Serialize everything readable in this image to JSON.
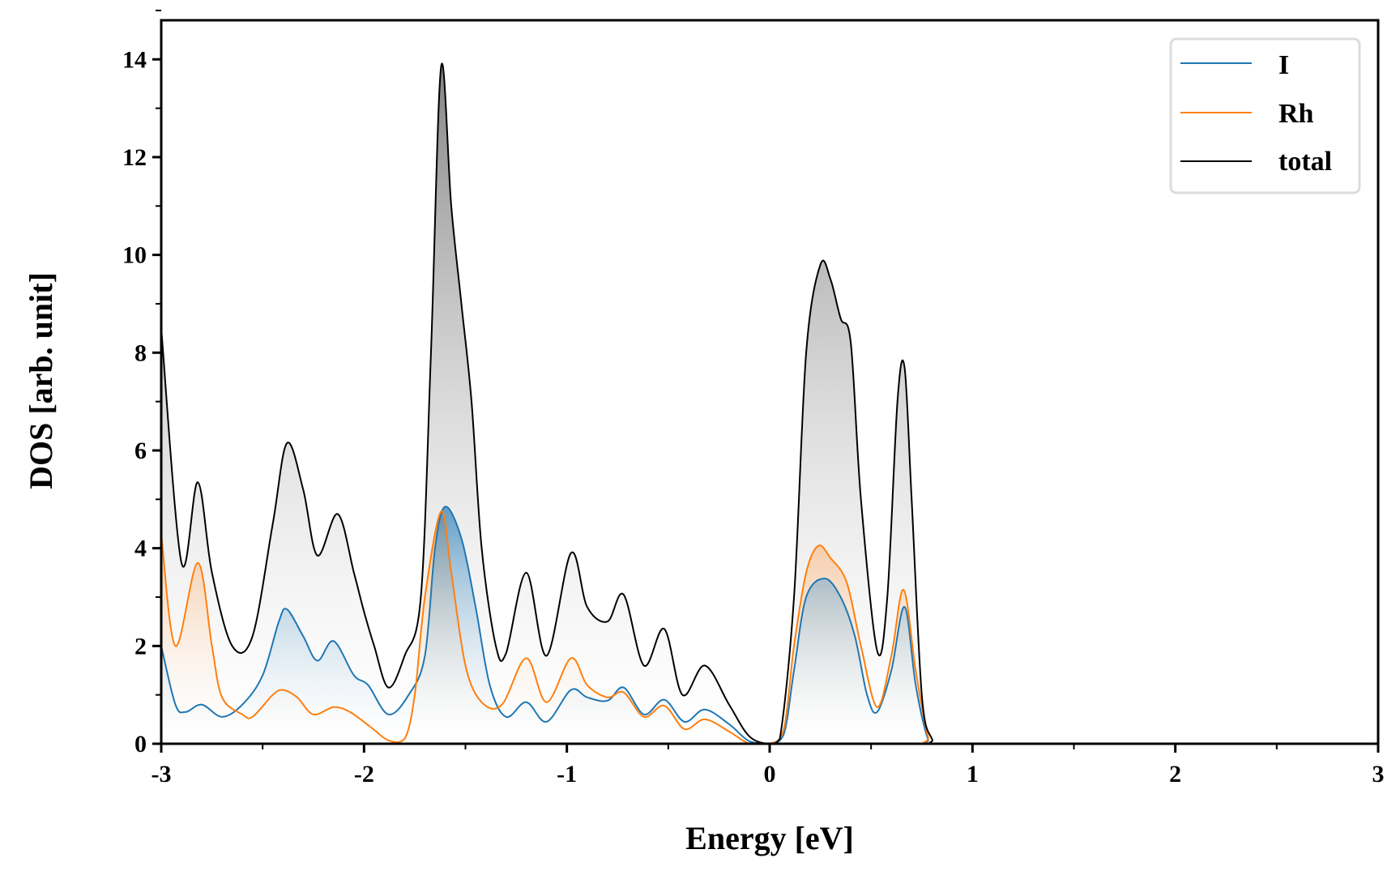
{
  "chart_data": {
    "type": "area",
    "title": "",
    "xlabel": "Energy [eV]",
    "ylabel": "DOS [arb. unit]",
    "xlim": [
      -3,
      3
    ],
    "ylim": [
      0,
      14.8
    ],
    "xticks": [
      -3,
      -2,
      -1,
      0,
      1,
      2,
      3
    ],
    "xtick_labels": [
      "-3",
      "-2",
      "-1",
      "0",
      "1",
      "2",
      "3"
    ],
    "yticks": [
      0,
      2,
      4,
      6,
      8,
      10,
      12,
      14
    ],
    "ytick_labels": [
      "0",
      "2",
      "4",
      "6",
      "8",
      "10",
      "12",
      "14"
    ],
    "grid": false,
    "legend_position": "top-right",
    "series": [
      {
        "name": "I",
        "color": "#1f77b4",
        "points": [
          [
            -3,
            2.0
          ],
          [
            -2.93,
            0.8
          ],
          [
            -2.88,
            0.65
          ],
          [
            -2.8,
            0.8
          ],
          [
            -2.7,
            0.55
          ],
          [
            -2.6,
            0.8
          ],
          [
            -2.5,
            1.4
          ],
          [
            -2.42,
            2.5
          ],
          [
            -2.38,
            2.75
          ],
          [
            -2.3,
            2.2
          ],
          [
            -2.23,
            1.7
          ],
          [
            -2.15,
            2.1
          ],
          [
            -2.05,
            1.4
          ],
          [
            -1.98,
            1.2
          ],
          [
            -1.88,
            0.6
          ],
          [
            -1.78,
            1.0
          ],
          [
            -1.7,
            1.8
          ],
          [
            -1.65,
            4.0
          ],
          [
            -1.6,
            4.85
          ],
          [
            -1.52,
            4.2
          ],
          [
            -1.45,
            2.8
          ],
          [
            -1.38,
            1.2
          ],
          [
            -1.3,
            0.55
          ],
          [
            -1.2,
            0.85
          ],
          [
            -1.1,
            0.45
          ],
          [
            -0.98,
            1.1
          ],
          [
            -0.9,
            0.95
          ],
          [
            -0.8,
            0.88
          ],
          [
            -0.72,
            1.15
          ],
          [
            -0.62,
            0.6
          ],
          [
            -0.52,
            0.9
          ],
          [
            -0.42,
            0.45
          ],
          [
            -0.32,
            0.7
          ],
          [
            -0.2,
            0.4
          ],
          [
            -0.1,
            0.05
          ],
          [
            0,
            0
          ],
          [
            0.07,
            0.2
          ],
          [
            0.12,
            1.5
          ],
          [
            0.18,
            3.0
          ],
          [
            0.27,
            3.38
          ],
          [
            0.35,
            3.0
          ],
          [
            0.42,
            2.2
          ],
          [
            0.48,
            1.0
          ],
          [
            0.53,
            0.65
          ],
          [
            0.6,
            1.5
          ],
          [
            0.665,
            2.8
          ],
          [
            0.72,
            1.2
          ],
          [
            0.78,
            0.1
          ],
          [
            0.82,
            0
          ],
          [
            1.5,
            0
          ],
          [
            3,
            0
          ]
        ]
      },
      {
        "name": "Rh",
        "color": "#ff7f0e",
        "points": [
          [
            -3,
            4.3
          ],
          [
            -2.93,
            2.0
          ],
          [
            -2.82,
            3.7
          ],
          [
            -2.75,
            2.0
          ],
          [
            -2.7,
            0.95
          ],
          [
            -2.6,
            0.6
          ],
          [
            -2.55,
            0.55
          ],
          [
            -2.45,
            1.0
          ],
          [
            -2.4,
            1.1
          ],
          [
            -2.33,
            0.95
          ],
          [
            -2.25,
            0.6
          ],
          [
            -2.15,
            0.75
          ],
          [
            -2.07,
            0.65
          ],
          [
            -1.97,
            0.35
          ],
          [
            -1.88,
            0.07
          ],
          [
            -1.8,
            0.1
          ],
          [
            -1.75,
            1.0
          ],
          [
            -1.7,
            3.0
          ],
          [
            -1.62,
            4.75
          ],
          [
            -1.57,
            3.5
          ],
          [
            -1.5,
            1.6
          ],
          [
            -1.42,
            0.85
          ],
          [
            -1.32,
            0.8
          ],
          [
            -1.2,
            1.75
          ],
          [
            -1.1,
            0.85
          ],
          [
            -0.98,
            1.75
          ],
          [
            -0.9,
            1.2
          ],
          [
            -0.8,
            0.95
          ],
          [
            -0.72,
            1.05
          ],
          [
            -0.62,
            0.55
          ],
          [
            -0.52,
            0.78
          ],
          [
            -0.42,
            0.3
          ],
          [
            -0.32,
            0.5
          ],
          [
            -0.2,
            0.25
          ],
          [
            -0.1,
            0
          ],
          [
            0,
            0
          ],
          [
            0.07,
            0.3
          ],
          [
            0.12,
            2.0
          ],
          [
            0.18,
            3.5
          ],
          [
            0.24,
            4.05
          ],
          [
            0.3,
            3.8
          ],
          [
            0.38,
            3.3
          ],
          [
            0.45,
            2.0
          ],
          [
            0.53,
            0.75
          ],
          [
            0.6,
            1.8
          ],
          [
            0.66,
            3.15
          ],
          [
            0.72,
            1.5
          ],
          [
            0.78,
            0.15
          ],
          [
            0.82,
            0
          ],
          [
            1.5,
            0
          ],
          [
            3,
            0
          ]
        ]
      },
      {
        "name": "total",
        "color": "#000000",
        "points": [
          [
            -3,
            8.5
          ],
          [
            -2.9,
            3.7
          ],
          [
            -2.82,
            5.35
          ],
          [
            -2.75,
            3.5
          ],
          [
            -2.65,
            2.0
          ],
          [
            -2.55,
            2.2
          ],
          [
            -2.45,
            4.5
          ],
          [
            -2.38,
            6.15
          ],
          [
            -2.3,
            5.2
          ],
          [
            -2.23,
            3.85
          ],
          [
            -2.13,
            4.7
          ],
          [
            -2.05,
            3.5
          ],
          [
            -2.0,
            2.7
          ],
          [
            -1.95,
            2.0
          ],
          [
            -1.88,
            1.15
          ],
          [
            -1.8,
            1.8
          ],
          [
            -1.72,
            3.0
          ],
          [
            -1.67,
            8.0
          ],
          [
            -1.62,
            13.85
          ],
          [
            -1.57,
            11.0
          ],
          [
            -1.52,
            9.0
          ],
          [
            -1.47,
            7.0
          ],
          [
            -1.42,
            4.0
          ],
          [
            -1.35,
            2.0
          ],
          [
            -1.3,
            1.85
          ],
          [
            -1.2,
            3.5
          ],
          [
            -1.1,
            1.8
          ],
          [
            -0.98,
            3.9
          ],
          [
            -0.9,
            2.8
          ],
          [
            -0.8,
            2.5
          ],
          [
            -0.72,
            3.05
          ],
          [
            -0.62,
            1.6
          ],
          [
            -0.52,
            2.35
          ],
          [
            -0.43,
            1.0
          ],
          [
            -0.32,
            1.6
          ],
          [
            -0.2,
            0.8
          ],
          [
            -0.1,
            0.15
          ],
          [
            0,
            0
          ],
          [
            0.05,
            0.1
          ],
          [
            0.12,
            3.0
          ],
          [
            0.18,
            8.0
          ],
          [
            0.25,
            9.8
          ],
          [
            0.3,
            9.5
          ],
          [
            0.35,
            8.7
          ],
          [
            0.4,
            8.2
          ],
          [
            0.45,
            5.0
          ],
          [
            0.53,
            1.9
          ],
          [
            0.58,
            3.0
          ],
          [
            0.63,
            7.0
          ],
          [
            0.665,
            7.7
          ],
          [
            0.7,
            5.0
          ],
          [
            0.75,
            1.0
          ],
          [
            0.8,
            0.1
          ],
          [
            0.85,
            0
          ],
          [
            1.5,
            0
          ],
          [
            3,
            0
          ]
        ]
      }
    ]
  }
}
